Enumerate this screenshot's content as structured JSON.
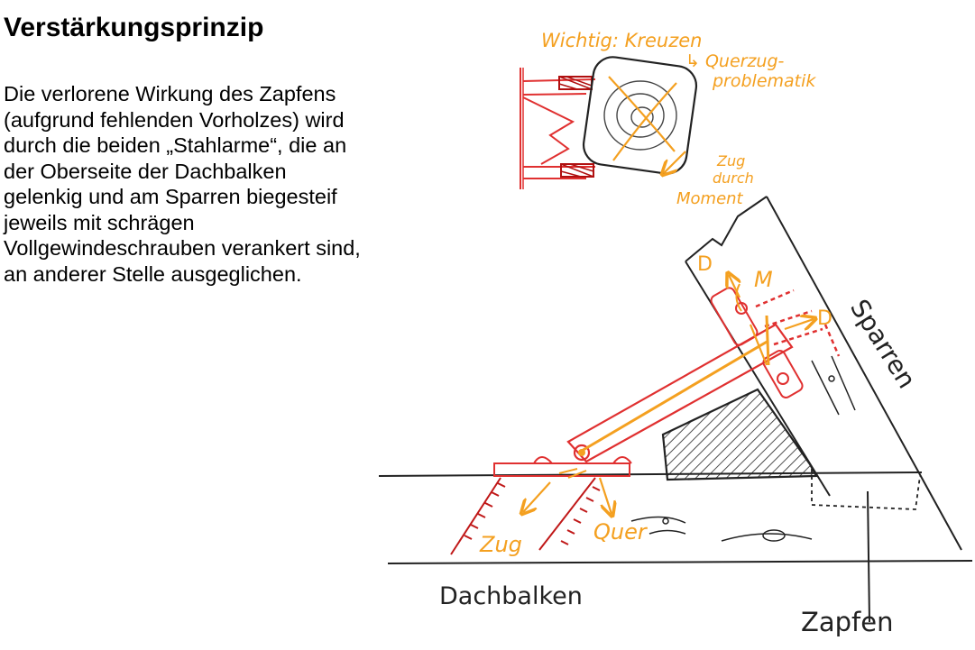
{
  "slide": {
    "title": "Verstärkungsprinzip",
    "body_lines": [
      "Die verlorene Wirkung des Zapfens",
      "(aufgrund fehlenden Vorholzes) wird",
      "durch die beiden „Stahlarme“, die an",
      "der Oberseite der Dachbalken",
      "gelenkig und am Sparren biegesteif",
      "jeweils mit schrägen",
      "Vollgewindeschrauben verankert sind,",
      "an anderer Stelle ausgeglichen."
    ]
  },
  "sketch": {
    "labels": {
      "dachbalken": "Dachbalken",
      "zapfen": "Zapfen",
      "sparren": "Sparren"
    },
    "annotations": {
      "wichtig": "Wichtig: Kreuzen",
      "querzug_1": "↳ Querzug-",
      "querzug_2": "problematik",
      "zug_moment_1": "Zug",
      "zug_moment_2": "durch",
      "zug_moment_3": "Moment",
      "zug": "Zug",
      "quer": "Quer",
      "d_left": "D",
      "d_right": "D",
      "m": "M"
    },
    "colors": {
      "ink": "#222222",
      "steel": "#e03030",
      "annotation": "#f4a020"
    }
  }
}
